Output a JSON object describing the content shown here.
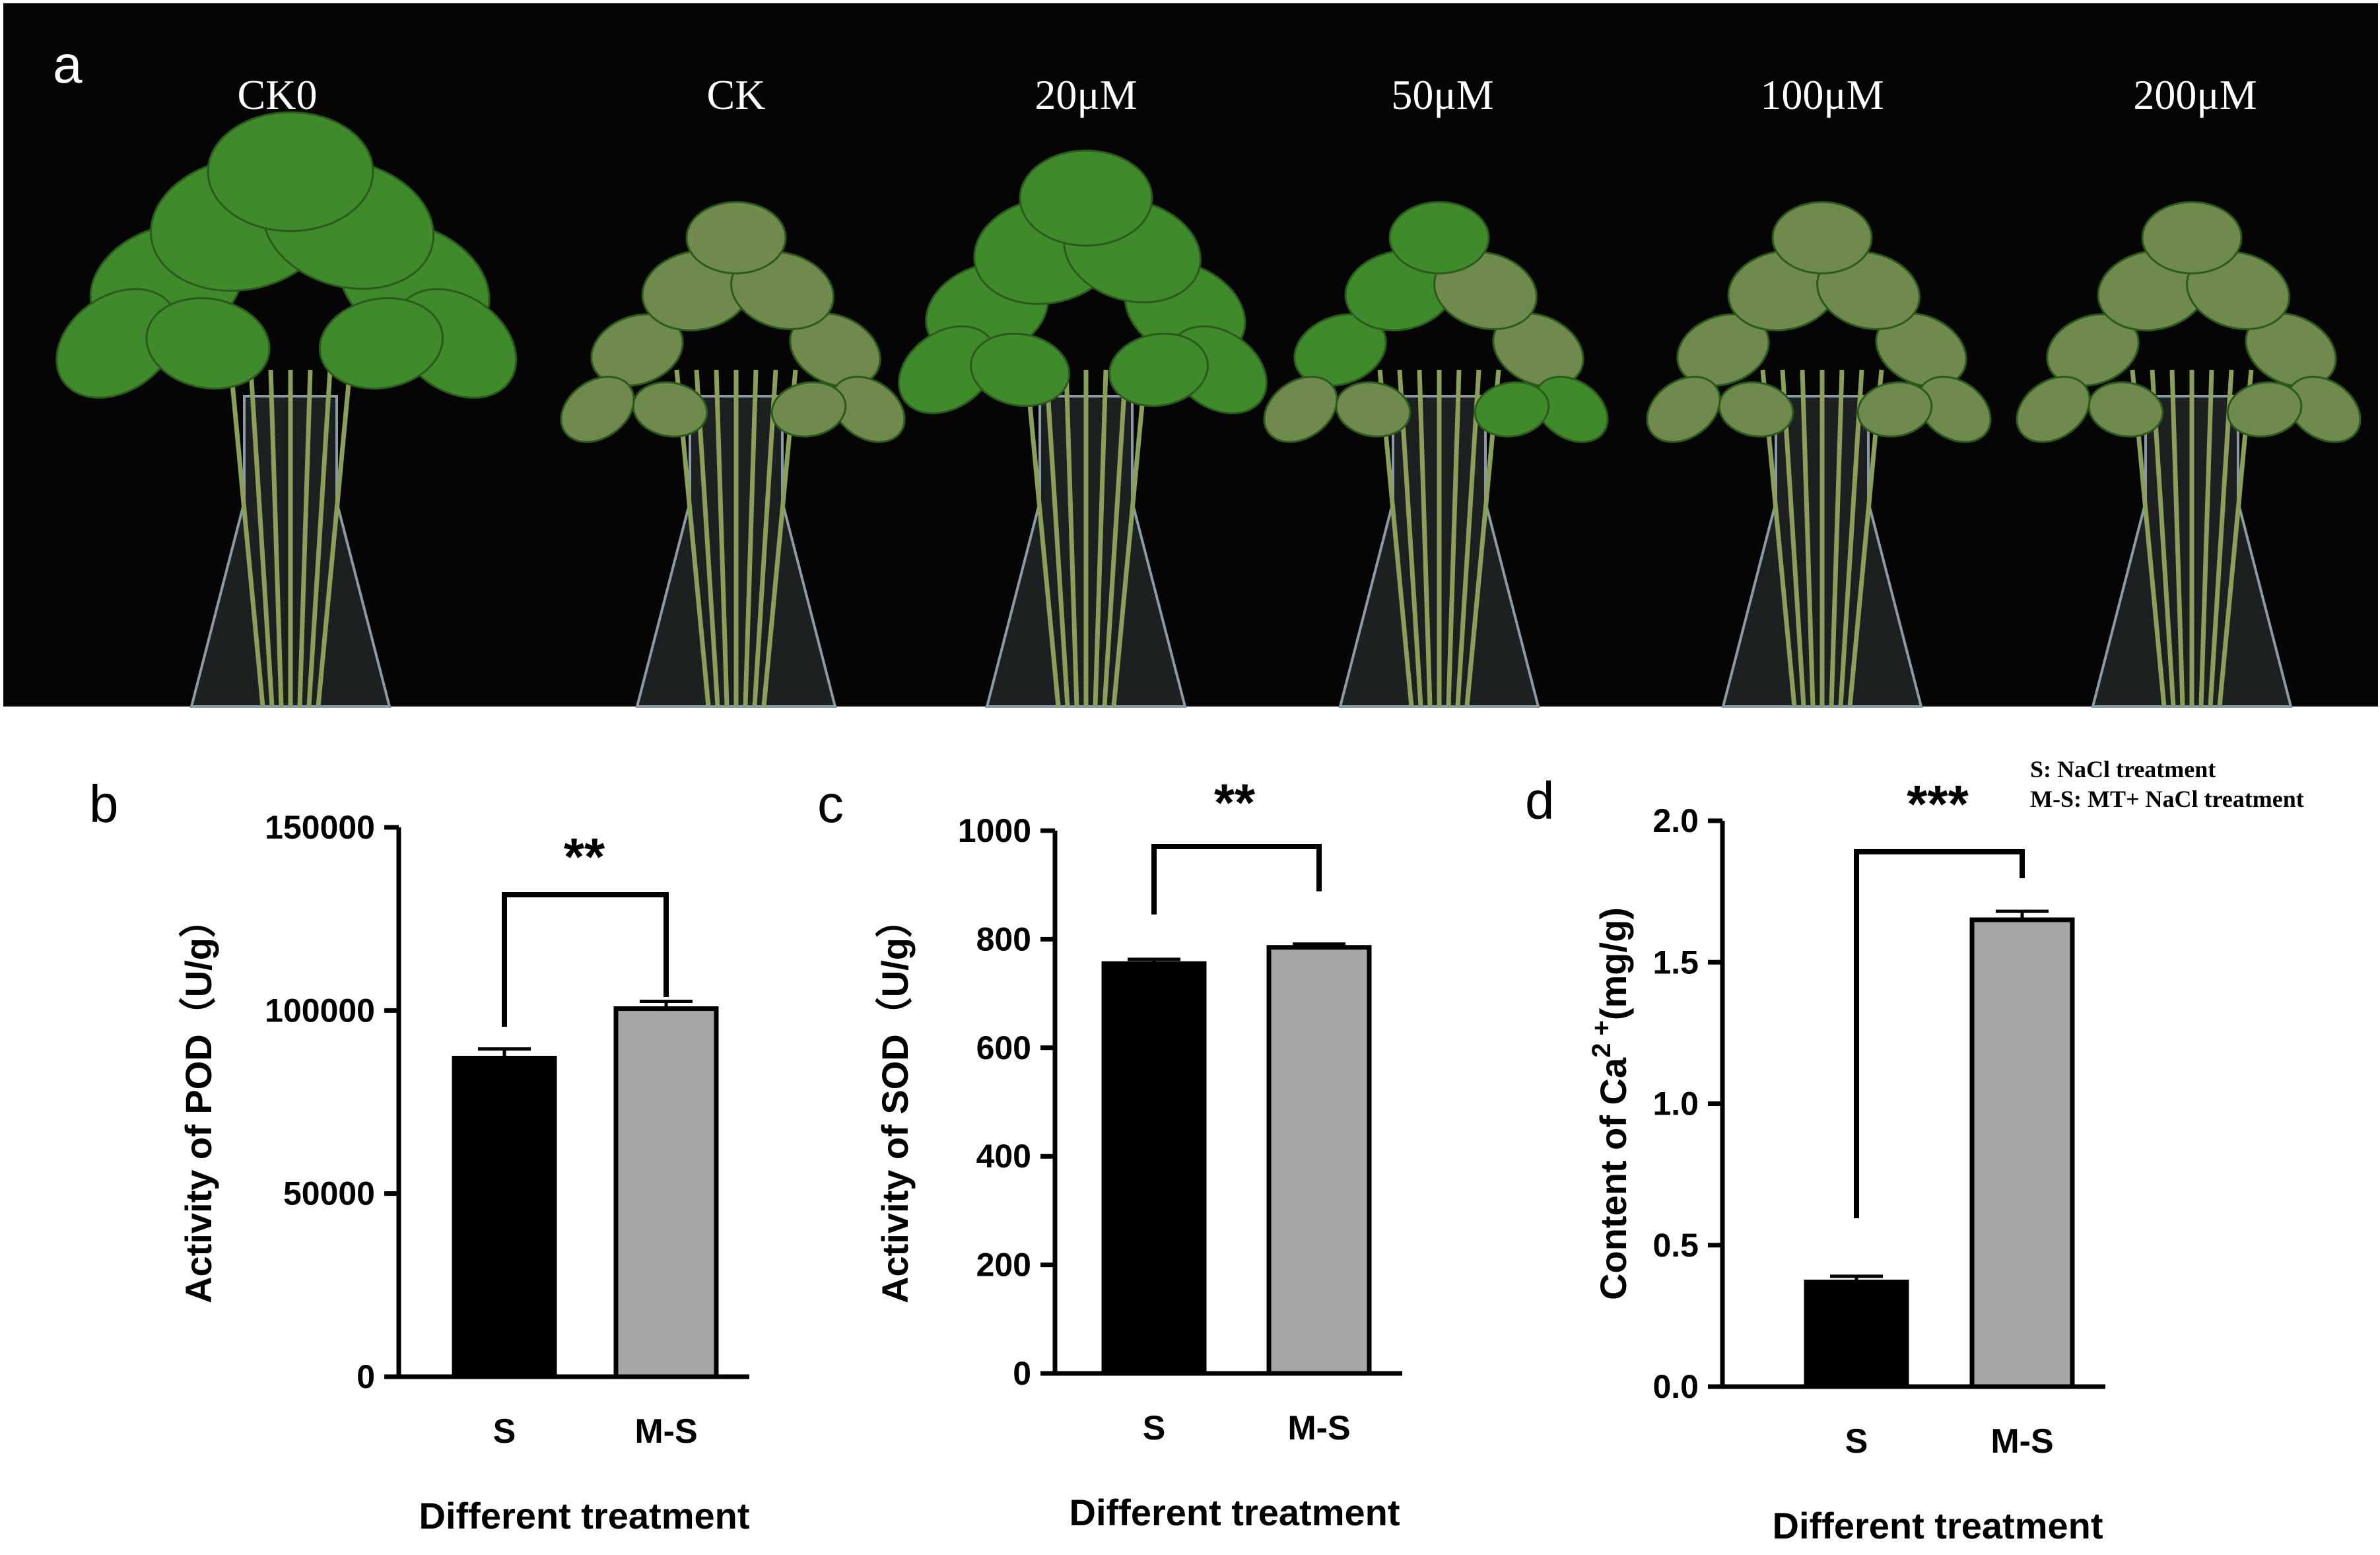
{
  "photo": {
    "panel_letter": "a",
    "treatments": [
      "CK0",
      "CK",
      "20μM",
      "50μM",
      "100μM",
      "200μM"
    ],
    "colors": {
      "background": "#050505",
      "leaf_healthy": "#3f8a2a",
      "leaf_wilted": "#6f8a4c",
      "stem": "#8aa05a",
      "glass": "#8c9aa3"
    },
    "plants": [
      {
        "condition": "healthy"
      },
      {
        "condition": "wilted"
      },
      {
        "condition": "healthy"
      },
      {
        "condition": "mixed"
      },
      {
        "condition": "wilted"
      },
      {
        "condition": "wilted"
      }
    ]
  },
  "legend_note": {
    "lines": [
      "S: NaCl treatment",
      "M-S: MT+ NaCl treatment"
    ]
  },
  "chart_data": [
    {
      "panel": "b",
      "type": "bar",
      "categories": [
        "S",
        "M-S"
      ],
      "values": [
        87000,
        100500
      ],
      "errors": [
        2500,
        2000
      ],
      "colors": [
        "#000000",
        "#a6a6a6"
      ],
      "xlabel": "Different treatment",
      "ylabel": "Activity of POD（U/g）",
      "ylim": [
        0,
        150000
      ],
      "yticks": [
        "0",
        "50000",
        "100000",
        "150000"
      ],
      "tick_values": [
        0,
        50000,
        100000,
        150000
      ],
      "significance": "**"
    },
    {
      "panel": "c",
      "type": "bar",
      "categories": [
        "S",
        "M-S"
      ],
      "values": [
        755,
        785
      ],
      "errors": [
        8,
        6
      ],
      "colors": [
        "#000000",
        "#a6a6a6"
      ],
      "xlabel": "Different treatment",
      "ylabel": "Activity of SOD（U/g）",
      "ylim": [
        0,
        1000
      ],
      "yticks": [
        "0",
        "200",
        "400",
        "600",
        "800",
        "1000"
      ],
      "tick_values": [
        0,
        200,
        400,
        600,
        800,
        1000
      ],
      "significance": "**"
    },
    {
      "panel": "d",
      "type": "bar",
      "categories": [
        "S",
        "M-S"
      ],
      "values": [
        0.37,
        1.65
      ],
      "errors": [
        0.02,
        0.03
      ],
      "colors": [
        "#000000",
        "#a6a6a6"
      ],
      "xlabel": "Different treatment",
      "ylabel_prefix": "Content of Ca",
      "ylabel_sup": "2 +",
      "ylabel_suffix": "(mg/g)",
      "ylim": [
        0,
        2.0
      ],
      "yticks": [
        "0.0",
        "0.5",
        "1.0",
        "1.5",
        "2.0"
      ],
      "tick_values": [
        0,
        0.5,
        1.0,
        1.5,
        2.0
      ],
      "significance": "***"
    }
  ]
}
